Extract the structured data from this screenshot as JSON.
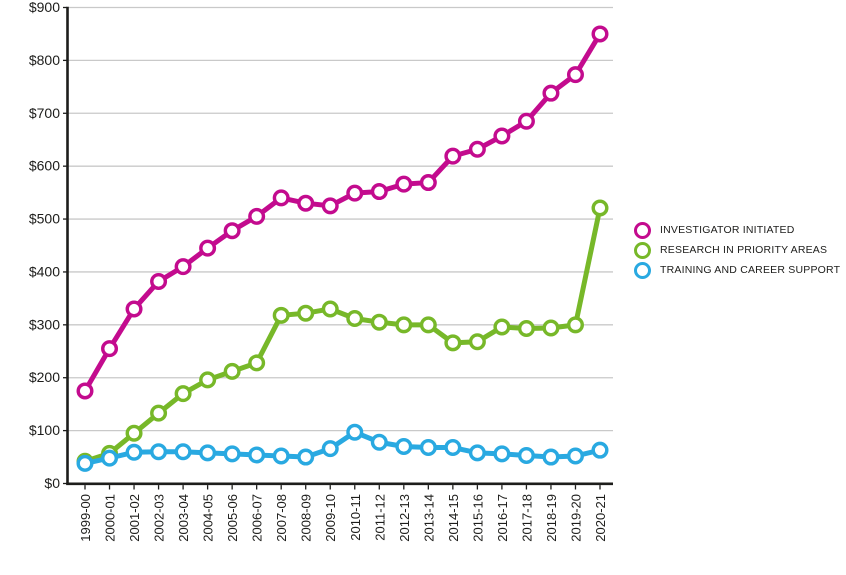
{
  "chart_data": {
    "type": "line",
    "title": "",
    "xlabel": "",
    "ylabel": "",
    "grid": true,
    "legend_position": "right",
    "y_axis": {
      "min": 0,
      "max": 900,
      "step": 100,
      "tick_prefix": "$",
      "tick_labels": [
        "$0",
        "$100",
        "$200",
        "$300",
        "$400",
        "$500",
        "$600",
        "$700",
        "$800",
        "$900"
      ]
    },
    "categories": [
      "1999-00",
      "2000-01",
      "2001-02",
      "2002-03",
      "2003-04",
      "2004-05",
      "2005-06",
      "2006-07",
      "2007-08",
      "2008-09",
      "2009-10",
      "2010-11",
      "2011-12",
      "2012-13",
      "2013-14",
      "2014-15",
      "2015-16",
      "2016-17",
      "2017-18",
      "2018-19",
      "2019-20",
      "2020-21"
    ],
    "series": [
      {
        "name": "INVESTIGATOR INITIATED",
        "color": "#c30b8e",
        "values": [
          175,
          255,
          330,
          382,
          410,
          445,
          478,
          505,
          540,
          530,
          525,
          549,
          552,
          566,
          569,
          619,
          632,
          657,
          685,
          738,
          773,
          850
        ]
      },
      {
        "name": "RESEARCH IN PRIORITY AREAS",
        "color": "#77b829",
        "values": [
          42,
          57,
          95,
          133,
          170,
          196,
          212,
          228,
          318,
          322,
          330,
          312,
          305,
          300,
          300,
          266,
          268,
          296,
          293,
          294,
          300,
          521
        ]
      },
      {
        "name": "TRAINING AND CAREER SUPPORT",
        "color": "#29a9e1",
        "values": [
          38,
          48,
          59,
          60,
          60,
          58,
          56,
          54,
          52,
          50,
          66,
          97,
          78,
          70,
          68,
          68,
          58,
          56,
          53,
          50,
          52,
          63
        ]
      }
    ]
  },
  "colors": {
    "gridline": "#c9c9c9",
    "axis": "#1d1d1b",
    "marker_fill": "#ffffff",
    "text": "#1d1d1b",
    "background": "#ffffff"
  }
}
